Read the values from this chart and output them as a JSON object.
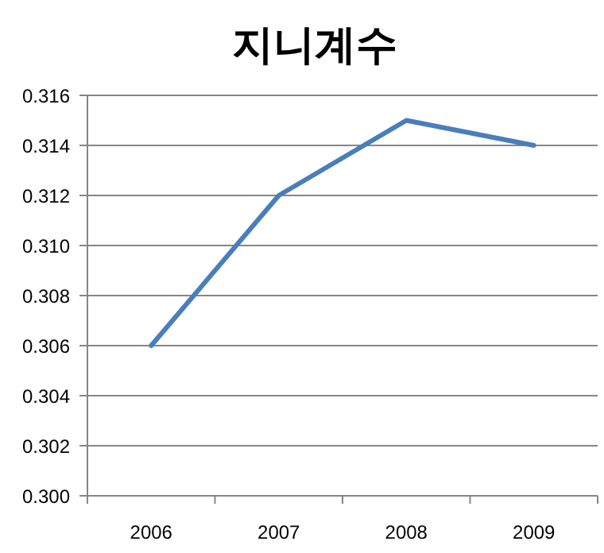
{
  "chart_data": {
    "type": "line",
    "title": "지니계수",
    "categories": [
      "2006",
      "2007",
      "2008",
      "2009"
    ],
    "series": [
      {
        "color": "#4a7ebb",
        "values": [
          0.306,
          0.312,
          0.315,
          0.314
        ]
      }
    ],
    "ylim": [
      0.3,
      0.316
    ],
    "yticks": [
      {
        "value": 0.3,
        "label": "0.300"
      },
      0.302,
      0.304,
      0.306,
      0.308,
      {
        "value": 0.31,
        "label": "0.310"
      },
      0.312,
      0.314,
      0.316
    ],
    "grid": "y"
  }
}
